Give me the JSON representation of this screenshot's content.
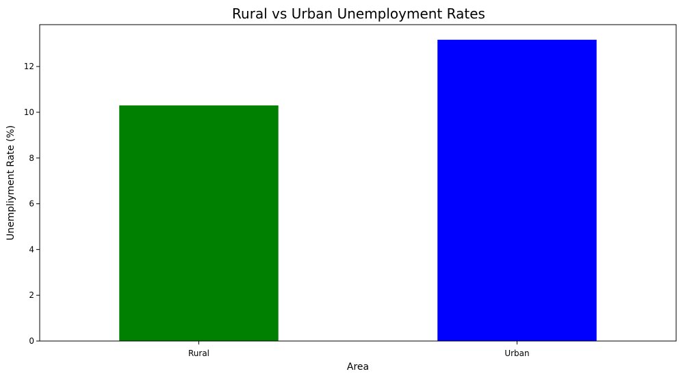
{
  "chart_data": {
    "type": "bar",
    "title": "Rural vs Urban Unemployment Rates",
    "xlabel": "Area",
    "ylabel": "Unempliyment Rate (%)",
    "categories": [
      "Rural",
      "Urban"
    ],
    "values": [
      10.3,
      13.17
    ],
    "colors": [
      "#008000",
      "#0000ff"
    ],
    "ylim": [
      0,
      13.83
    ],
    "yticks": [
      0,
      2,
      4,
      6,
      8,
      10,
      12
    ],
    "grid": false,
    "legend": "none"
  }
}
